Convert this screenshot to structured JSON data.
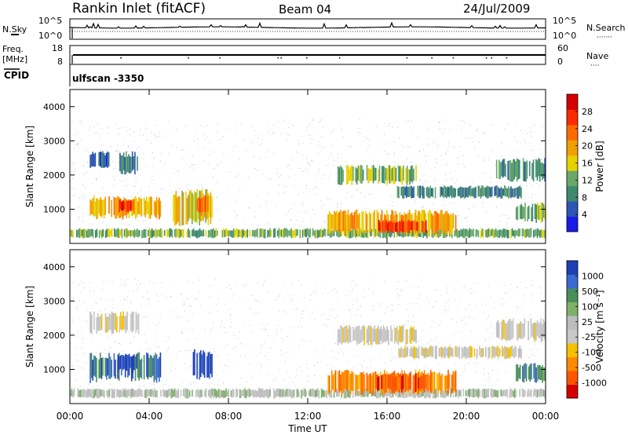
{
  "header": {
    "title": "Rankin Inlet (fitACF)",
    "beam": "Beam 04",
    "date": "24/Jul/2009"
  },
  "strip1": {
    "left_label": "N.Sky",
    "right_label": "N.Search",
    "left_ticks": [
      "10^5",
      "10^0"
    ],
    "right_ticks": [
      "10^5",
      "10^0"
    ]
  },
  "strip2": {
    "left_label_1": "Freq.",
    "left_label_2": "[MHz]",
    "right_label": "Nave",
    "left_ticks": [
      "18",
      "8"
    ],
    "right_ticks": [
      "60",
      "0"
    ]
  },
  "cpid": {
    "label": "CPID",
    "value": "ulfscan -3350"
  },
  "x_axis": {
    "label": "Time UT",
    "ticks": [
      "00:00",
      "04:00",
      "08:00",
      "12:00",
      "16:00",
      "20:00",
      "00:00"
    ]
  },
  "colors": {
    "power": [
      "#1a1ae6",
      "#2d55b4",
      "#3f8a6e",
      "#6aa86a",
      "#e6d200",
      "#f0a000",
      "#ff6a00",
      "#ff2a00",
      "#d40000"
    ],
    "velocity": [
      "#1f3fb4",
      "#3a6ad0",
      "#4a8f5a",
      "#7fb06a",
      "#bdbdbd",
      "#c8c8c8",
      "#f5c000",
      "#ff8a00",
      "#ff5500",
      "#d40000"
    ]
  },
  "chart_data": [
    {
      "type": "heatmap",
      "ylabel": "Slant Range [km]",
      "xlabel": "",
      "y_ticks": [
        "1000",
        "2000",
        "3000",
        "4000"
      ],
      "ylim": [
        0,
        4500
      ],
      "xlim": [
        0,
        24
      ],
      "colorbar": {
        "label": "Power [dB]",
        "ticks": [
          "4",
          "8",
          "12",
          "16",
          "20",
          "24",
          "28"
        ]
      },
      "regions": [
        {
          "t0": 0.0,
          "t1": 24.0,
          "r0": 150,
          "r1": 450,
          "level": 3
        },
        {
          "t0": 1.0,
          "t1": 4.6,
          "r0": 700,
          "r1": 1400,
          "level": 5
        },
        {
          "t0": 2.4,
          "t1": 3.3,
          "r0": 900,
          "r1": 1300,
          "level": 7
        },
        {
          "t0": 5.2,
          "t1": 7.2,
          "r0": 500,
          "r1": 1600,
          "level": 4
        },
        {
          "t0": 6.4,
          "t1": 7.0,
          "r0": 800,
          "r1": 1400,
          "level": 6
        },
        {
          "t0": 1.0,
          "t1": 2.0,
          "r0": 2200,
          "r1": 2700,
          "level": 1
        },
        {
          "t0": 2.5,
          "t1": 3.5,
          "r0": 2000,
          "r1": 2700,
          "level": 2
        },
        {
          "t0": 13.5,
          "t1": 17.5,
          "r0": 1700,
          "r1": 2300,
          "level": 3
        },
        {
          "t0": 16.5,
          "t1": 22.8,
          "r0": 1300,
          "r1": 1700,
          "level": 2
        },
        {
          "t0": 21.5,
          "t1": 24.0,
          "r0": 1800,
          "r1": 2500,
          "level": 2
        },
        {
          "t0": 13.0,
          "t1": 19.5,
          "r0": 250,
          "r1": 1000,
          "level": 5
        },
        {
          "t0": 15.5,
          "t1": 18.0,
          "r0": 300,
          "r1": 700,
          "level": 7
        },
        {
          "t0": 22.5,
          "t1": 24.0,
          "r0": 600,
          "r1": 1200,
          "level": 3
        }
      ]
    },
    {
      "type": "heatmap",
      "ylabel": "Slant Range [km]",
      "xlabel": "Time UT",
      "y_ticks": [
        "1000",
        "2000",
        "3000",
        "4000"
      ],
      "ylim": [
        0,
        4500
      ],
      "xlim": [
        0,
        24
      ],
      "colorbar": {
        "label": "Velocity [m s⁻¹]",
        "ticks": [
          "1000",
          "500",
          "100",
          "25",
          "-25",
          "-100",
          "-500",
          "-1000"
        ]
      },
      "regions": [
        {
          "t0": 0.0,
          "t1": 24.0,
          "r0": 150,
          "r1": 450,
          "level": 4
        },
        {
          "t0": 1.0,
          "t1": 4.6,
          "r0": 600,
          "r1": 1500,
          "level": 1
        },
        {
          "t0": 2.4,
          "t1": 3.4,
          "r0": 900,
          "r1": 1500,
          "level": 0
        },
        {
          "t0": 6.2,
          "t1": 7.2,
          "r0": 700,
          "r1": 1600,
          "level": 0
        },
        {
          "t0": 1.0,
          "t1": 3.5,
          "r0": 2000,
          "r1": 2700,
          "level": 5
        },
        {
          "t0": 13.5,
          "t1": 17.5,
          "r0": 1700,
          "r1": 2300,
          "level": 5
        },
        {
          "t0": 16.5,
          "t1": 22.8,
          "r0": 1300,
          "r1": 1700,
          "level": 5
        },
        {
          "t0": 21.5,
          "t1": 24.0,
          "r0": 1800,
          "r1": 2500,
          "level": 5
        },
        {
          "t0": 13.0,
          "t1": 19.5,
          "r0": 250,
          "r1": 1000,
          "level": 7
        },
        {
          "t0": 15.5,
          "t1": 18.0,
          "r0": 300,
          "r1": 900,
          "level": 8
        },
        {
          "t0": 22.5,
          "t1": 24.0,
          "r0": 600,
          "r1": 1200,
          "level": 2
        }
      ]
    }
  ]
}
